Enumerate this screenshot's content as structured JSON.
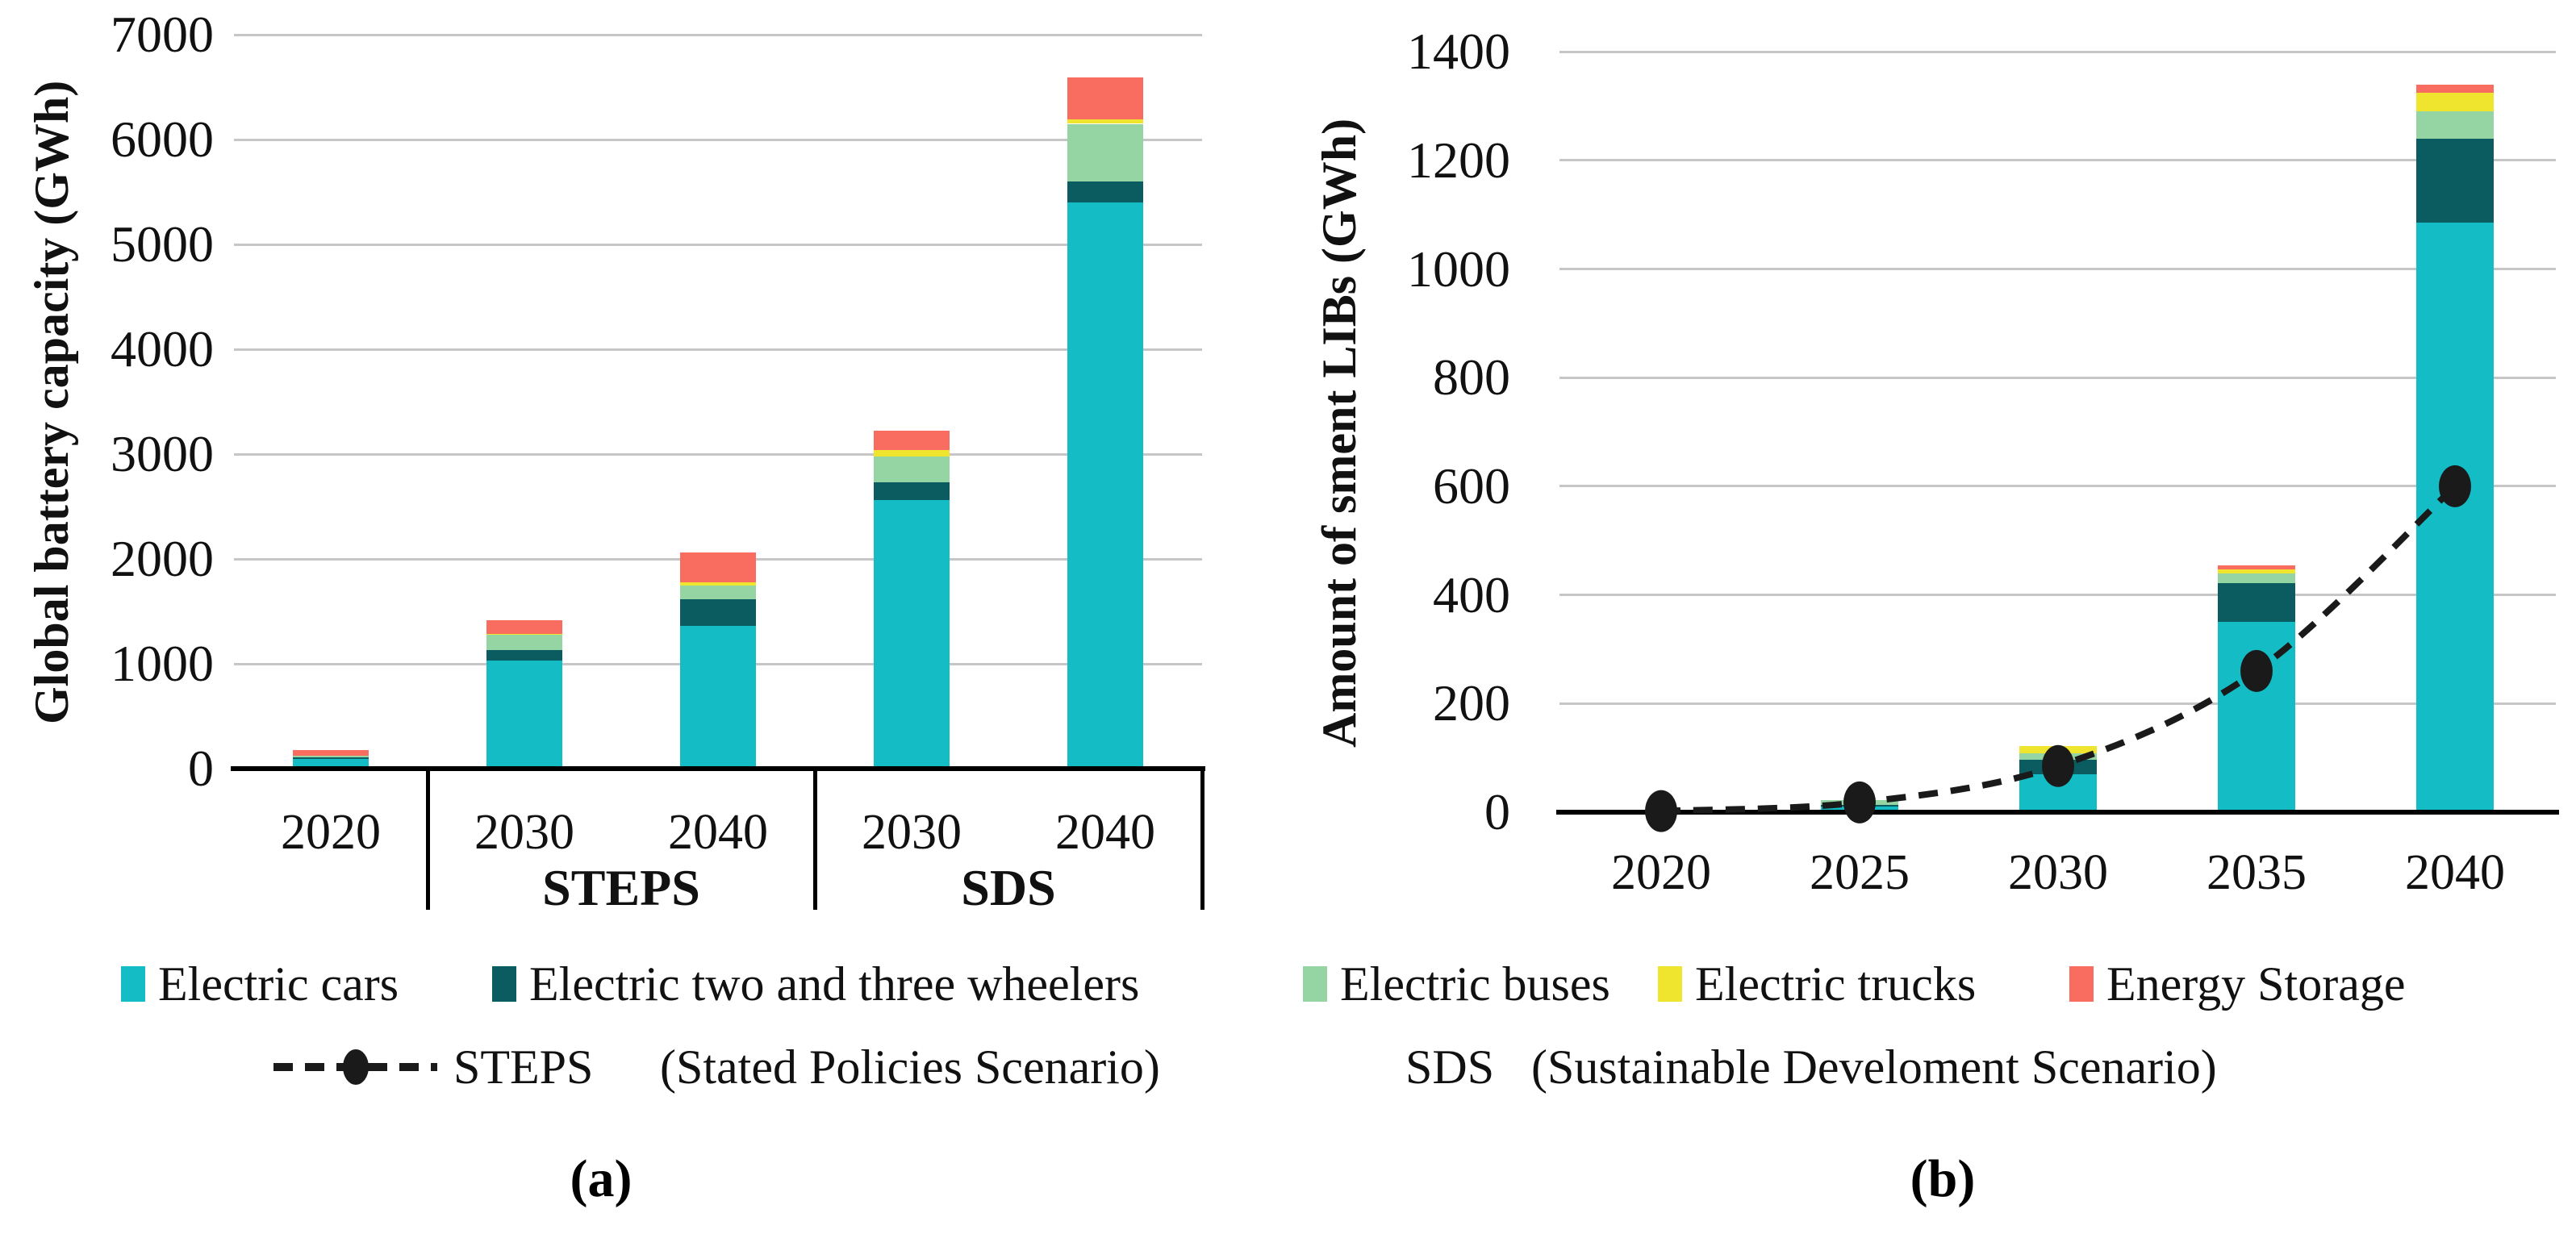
{
  "figure": {
    "panel_a_label": "(a)",
    "panel_b_label": "(b)"
  },
  "colors": {
    "electric_cars": "#14BDC6",
    "electric_two_three_wheelers": "#0A5C61",
    "electric_buses": "#95D5A4",
    "electric_trucks": "#EFE52F",
    "energy_storage": "#F96C60",
    "steps_line": "#1A1A1A",
    "gridline": "#C6C6C6",
    "axis": "#000000"
  },
  "legend": {
    "series": [
      {
        "label": "Electric cars",
        "color": "#14BDC6"
      },
      {
        "label": "Electric two and three wheelers",
        "color": "#0A5C61"
      },
      {
        "label": "Electric buses",
        "color": "#95D5A4"
      },
      {
        "label": "Electric trucks",
        "color": "#EFE52F"
      },
      {
        "label": "Energy Storage",
        "color": "#F96C60"
      }
    ],
    "scenarios": [
      {
        "label": "STEPS",
        "description": "(Stated Policies Scenario)",
        "marker": "dashed-line-with-dot"
      },
      {
        "label": "SDS",
        "description": "(Sustainable Develoment Scenario)",
        "marker": "none"
      }
    ]
  },
  "chart_data": [
    {
      "id": "a",
      "type": "bar",
      "stacked": true,
      "ylabel": "Global battery capacity (GWh)",
      "ylim": [
        0,
        7000
      ],
      "ytick_step": 1000,
      "grid": true,
      "legend_position": "bottom",
      "categories": [
        "2020",
        "2030",
        "2040",
        "2030",
        "2040"
      ],
      "groups": [
        {
          "label": "STEPS",
          "from": 1,
          "to": 2
        },
        {
          "label": "SDS",
          "from": 3,
          "to": 4
        }
      ],
      "series": [
        {
          "name": "Electric cars",
          "color": "#14BDC6",
          "values": [
            95,
            1030,
            1360,
            2560,
            5400
          ]
        },
        {
          "name": "Electric two and three wheelers",
          "color": "#0A5C61",
          "values": [
            15,
            100,
            255,
            170,
            200
          ]
        },
        {
          "name": "Electric buses",
          "color": "#95D5A4",
          "values": [
            15,
            145,
            130,
            250,
            550
          ]
        },
        {
          "name": "Electric trucks",
          "color": "#EFE52F",
          "values": [
            0,
            10,
            30,
            60,
            40
          ]
        },
        {
          "name": "Energy Storage",
          "color": "#F96C60",
          "values": [
            50,
            130,
            285,
            185,
            400
          ]
        }
      ],
      "totals": [
        175,
        1415,
        2060,
        3225,
        6590
      ]
    },
    {
      "id": "b",
      "type": "bar+line",
      "stacked": true,
      "ylabel": "Amount of sment LIBs (GWh)",
      "ylim": [
        0,
        1400
      ],
      "ytick_step": 200,
      "grid": true,
      "categories": [
        "2020",
        "2025",
        "2030",
        "2035",
        "2040"
      ],
      "series": [
        {
          "name": "Electric cars",
          "color": "#14BDC6",
          "values": [
            1,
            10,
            70,
            350,
            1085
          ]
        },
        {
          "name": "Electric two and three wheelers",
          "color": "#0A5C61",
          "values": [
            0,
            4,
            27,
            72,
            155
          ]
        },
        {
          "name": "Electric buses",
          "color": "#95D5A4",
          "values": [
            1,
            8,
            11,
            18,
            50
          ]
        },
        {
          "name": "Electric trucks",
          "color": "#EFE52F",
          "values": [
            0,
            0,
            14,
            7,
            35
          ]
        },
        {
          "name": "Energy Storage",
          "color": "#F96C60",
          "values": [
            0,
            0,
            0,
            8,
            15
          ]
        }
      ],
      "totals": [
        2,
        22,
        122,
        455,
        1340
      ],
      "line_series": {
        "name": "STEPS",
        "color": "#1A1A1A",
        "style": "dashed",
        "values": [
          2,
          18,
          85,
          260,
          600
        ]
      }
    }
  ]
}
